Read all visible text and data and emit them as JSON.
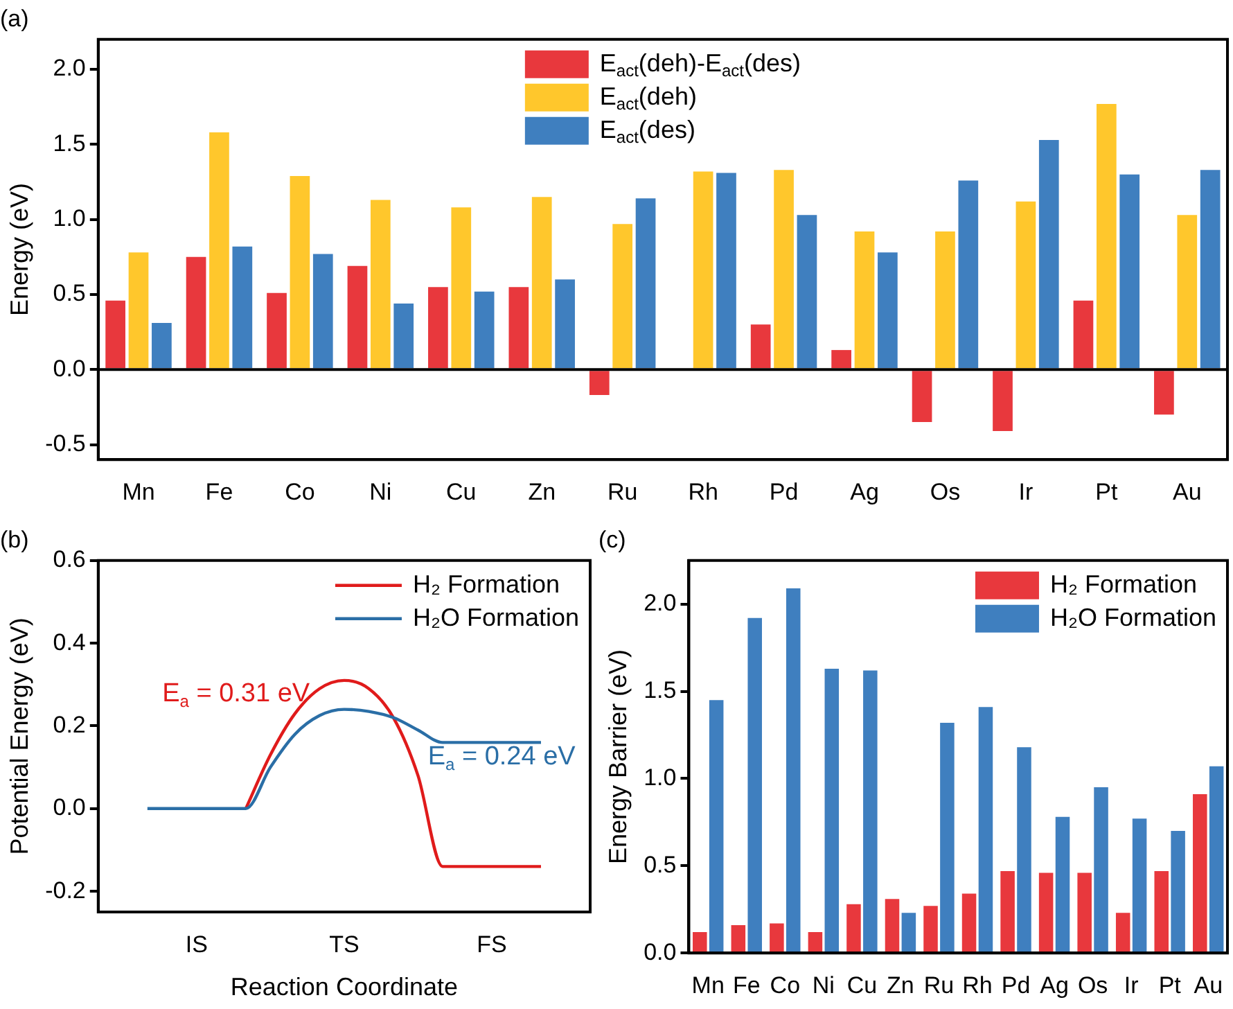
{
  "chart_data": [
    {
      "type": "bar",
      "title": "(a)",
      "ylabel": "Energy (eV)",
      "categories": [
        "Mn",
        "Fe",
        "Co",
        "Ni",
        "Cu",
        "Zn",
        "Ru",
        "Rh",
        "Pd",
        "Ag",
        "Os",
        "Ir",
        "Pt",
        "Au"
      ],
      "series": [
        {
          "name": "E$_{act}$(deh)-E$_{act}$(des)",
          "color": "#e8383d",
          "values": [
            0.46,
            0.75,
            0.51,
            0.69,
            0.55,
            0.55,
            -0.17,
            0,
            0.3,
            0.13,
            -0.35,
            -0.41,
            0.46,
            -0.3
          ]
        },
        {
          "name": "E$_{act}$(deh)",
          "color": "#ffc72c",
          "values": [
            0.78,
            1.58,
            1.29,
            1.13,
            1.08,
            1.15,
            0.97,
            1.32,
            1.33,
            0.92,
            0.92,
            1.12,
            1.77,
            1.03
          ]
        },
        {
          "name": "E$_{act}$(des)",
          "color": "#3f7fbf",
          "values": [
            0.31,
            0.82,
            0.77,
            0.44,
            0.52,
            0.6,
            1.14,
            1.31,
            1.03,
            0.78,
            1.26,
            1.53,
            1.3,
            1.33
          ]
        }
      ],
      "ylim": [
        -0.6,
        2.2
      ],
      "yticks": [
        -0.5,
        {
          "value": 0,
          "label": "0.0"
        },
        0.5,
        {
          "value": 1,
          "label": "1.0"
        },
        1.5,
        {
          "value": 2,
          "label": "2.0"
        }
      ],
      "ref_lines": [
        {
          "axis": "y",
          "value": 0,
          "color": "#000000"
        }
      ],
      "legend": "top"
    },
    {
      "type": "line",
      "title": "(b)",
      "xlabel": "Reaction Coordinate",
      "ylabel": "Potential Energy (eV)",
      "categories": [
        null,
        null,
        null,
        null,
        "IS",
        null,
        null,
        null,
        null,
        null,
        "TS",
        null,
        null,
        null,
        null,
        null,
        "FS",
        null,
        null,
        null,
        null
      ],
      "series": [
        {
          "name": "H₂ Formation",
          "color": "#e01b1b",
          "values": [
            null,
            null,
            null,
            null,
            null,
            null,
            0,
            0.13,
            0.23,
            0.29,
            0.31,
            0.29,
            0.22,
            0.08,
            -0.14,
            -0.14,
            -0.14,
            -0.14,
            -0.14,
            null,
            null
          ]
        },
        {
          "name": "H₂O Formation",
          "color": "#2a6ea6",
          "values": [
            null,
            null,
            0,
            0,
            0,
            0,
            0,
            0.1,
            0.18,
            0.225,
            0.24,
            0.235,
            0.22,
            0.19,
            0.16,
            0.16,
            0.16,
            0.16,
            0.16,
            null,
            null
          ]
        }
      ],
      "ylim": [
        -0.25,
        0.6
      ],
      "yticks": [
        -0.2,
        {
          "value": 0,
          "label": "0.0"
        },
        0.2,
        0.4,
        0.6
      ],
      "annotations": [
        "E$_{a}$ = 0.31 eV",
        "E$_{a}$ = 0.24 eV"
      ],
      "marker": "none",
      "line_style": "solid",
      "legend": "top right"
    },
    {
      "type": "bar",
      "title": "(c)",
      "ylabel": "Energy Barrier (eV)",
      "categories": [
        "Mn",
        "Fe",
        "Co",
        "Ni",
        "Cu",
        "Zn",
        "Ru",
        "Rh",
        "Pd",
        "Ag",
        "Os",
        "Ir",
        "Pt",
        "Au"
      ],
      "series": [
        {
          "name": "H₂ Formation",
          "color": "#e8383d",
          "values": [
            0.12,
            0.16,
            0.17,
            0.12,
            0.28,
            0.31,
            0.27,
            0.34,
            0.47,
            0.46,
            0.46,
            0.23,
            0.47,
            0.91
          ]
        },
        {
          "name": "H₂O Formation",
          "color": "#3f7fbf",
          "values": [
            1.45,
            1.92,
            2.09,
            1.63,
            1.62,
            0.23,
            1.32,
            1.41,
            1.18,
            0.78,
            0.95,
            0.77,
            0.7,
            1.07
          ]
        }
      ],
      "ylim": [
        0,
        2.25
      ],
      "yticks": [
        {
          "value": 0,
          "label": "0.0"
        },
        0.5,
        {
          "value": 1,
          "label": "1.0"
        },
        1.5,
        {
          "value": 2,
          "label": "2.0"
        }
      ],
      "legend": "top right"
    }
  ]
}
